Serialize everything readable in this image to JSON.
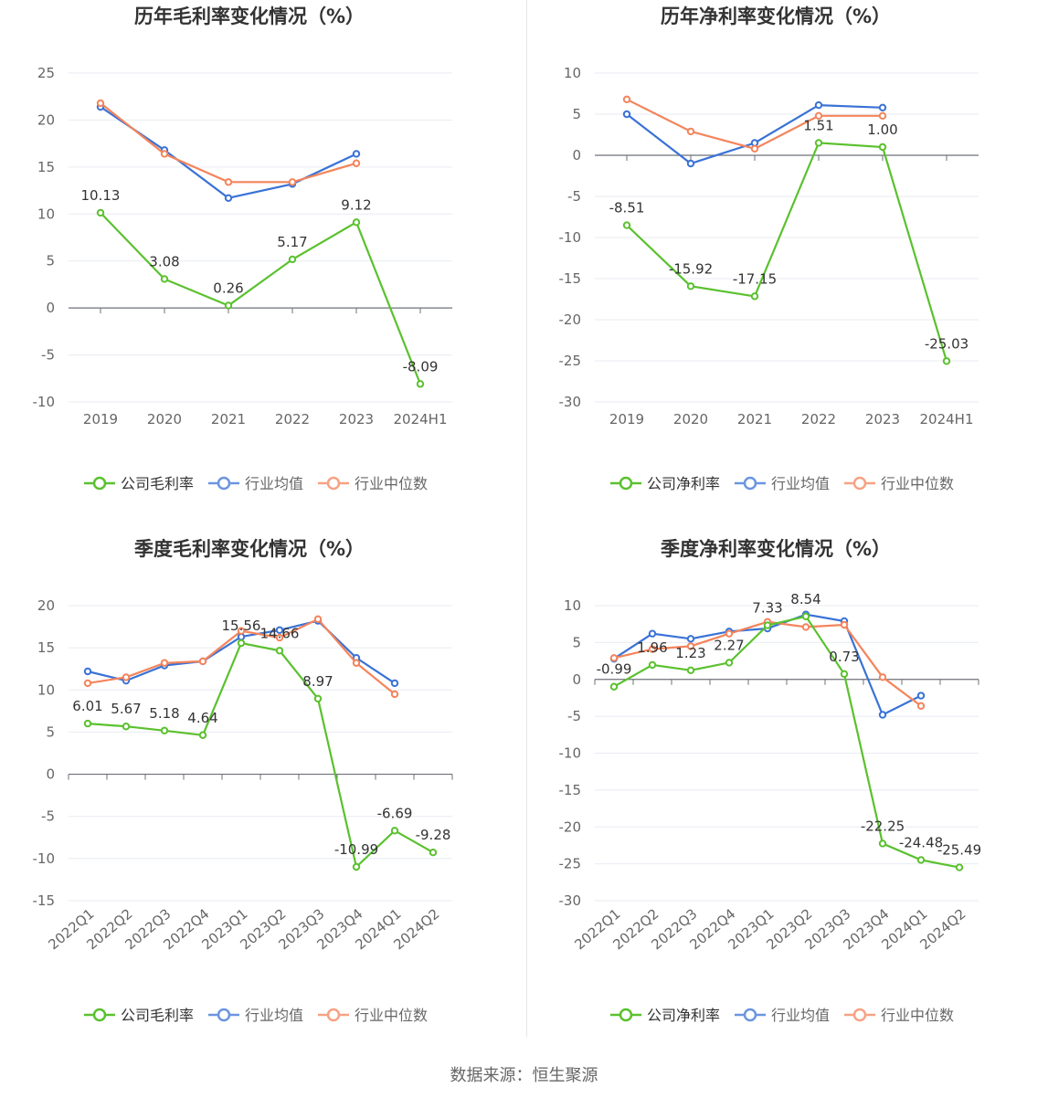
{
  "source": "数据来源：恒生聚源",
  "colors": {
    "company": "#5ac12e",
    "avg": "#3a72d6",
    "median": "#f4845b",
    "axis": "#666666",
    "grid": "#e8ebf2"
  },
  "chart_data": [
    {
      "type": "line",
      "title": "历年毛利率变化情况（%）",
      "categories": [
        "2019",
        "2020",
        "2021",
        "2022",
        "2023",
        "2024H1"
      ],
      "ylim": [
        -10,
        25
      ],
      "yticks": [
        25,
        20,
        15,
        10,
        5,
        0,
        -5,
        -10
      ],
      "rotate_labels": false,
      "series": [
        {
          "name": "公司毛利率",
          "key": "company",
          "labeled": true,
          "values": [
            10.13,
            3.08,
            0.26,
            5.17,
            9.12,
            -8.09
          ],
          "labels": [
            "10.13",
            "3.08",
            "0.26",
            "5.17",
            "9.12",
            "-8.09"
          ]
        },
        {
          "name": "行业均值",
          "key": "avg",
          "values": [
            21.4,
            16.8,
            11.7,
            13.2,
            16.4,
            null
          ]
        },
        {
          "name": "行业中位数",
          "key": "median",
          "values": [
            21.8,
            16.4,
            13.4,
            13.4,
            15.4,
            null
          ]
        }
      ]
    },
    {
      "type": "line",
      "title": "历年净利率变化情况（%）",
      "categories": [
        "2019",
        "2020",
        "2021",
        "2022",
        "2023",
        "2024H1"
      ],
      "ylim": [
        -30,
        10
      ],
      "yticks": [
        10,
        5,
        0,
        -5,
        -10,
        -15,
        -20,
        -25,
        -30
      ],
      "rotate_labels": false,
      "series": [
        {
          "name": "公司净利率",
          "key": "company",
          "labeled": true,
          "values": [
            -8.51,
            -15.92,
            -17.15,
            1.51,
            1.0,
            -25.03
          ],
          "labels": [
            "-8.51",
            "-15.92",
            "-17.15",
            "1.51",
            "1.00",
            "-25.03"
          ]
        },
        {
          "name": "行业均值",
          "key": "avg",
          "values": [
            5.0,
            -1.0,
            1.5,
            6.1,
            5.8,
            null
          ]
        },
        {
          "name": "行业中位数",
          "key": "median",
          "values": [
            6.8,
            2.9,
            0.8,
            4.8,
            4.8,
            null
          ]
        }
      ]
    },
    {
      "type": "line",
      "title": "季度毛利率变化情况（%）",
      "categories": [
        "2022Q1",
        "2022Q2",
        "2022Q3",
        "2022Q4",
        "2023Q1",
        "2023Q2",
        "2023Q3",
        "2023Q4",
        "2024Q1",
        "2024Q2"
      ],
      "ylim": [
        -15,
        20
      ],
      "yticks": [
        20,
        15,
        10,
        5,
        0,
        -5,
        -10,
        -15
      ],
      "rotate_labels": true,
      "series": [
        {
          "name": "公司毛利率",
          "key": "company",
          "labeled": true,
          "values": [
            6.01,
            5.67,
            5.18,
            4.64,
            15.56,
            14.66,
            8.97,
            -10.99,
            -6.69,
            -9.28
          ],
          "labels": [
            "6.01",
            "5.67",
            "5.18",
            "4.64",
            "15.56",
            "14.66",
            "8.97",
            "-10.99",
            "-6.69",
            "-9.28"
          ]
        },
        {
          "name": "行业均值",
          "key": "avg",
          "values": [
            12.2,
            11.1,
            12.9,
            13.4,
            16.3,
            17.1,
            18.2,
            13.8,
            10.8,
            null
          ]
        },
        {
          "name": "行业中位数",
          "key": "median",
          "values": [
            10.8,
            11.5,
            13.2,
            13.4,
            17.0,
            16.2,
            18.4,
            13.2,
            9.5,
            null
          ]
        }
      ]
    },
    {
      "type": "line",
      "title": "季度净利率变化情况（%）",
      "categories": [
        "2022Q1",
        "2022Q2",
        "2022Q3",
        "2022Q4",
        "2023Q1",
        "2023Q2",
        "2023Q3",
        "2023Q4",
        "2024Q1",
        "2024Q2"
      ],
      "ylim": [
        -30,
        10
      ],
      "yticks": [
        10,
        5,
        0,
        -5,
        -10,
        -15,
        -20,
        -25,
        -30
      ],
      "rotate_labels": true,
      "series": [
        {
          "name": "公司净利率",
          "key": "company",
          "labeled": true,
          "values": [
            -0.99,
            1.96,
            1.23,
            2.27,
            7.33,
            8.54,
            0.73,
            -22.25,
            -24.48,
            -25.49
          ],
          "labels": [
            "-0.99",
            "1.96",
            "1.23",
            "2.27",
            "7.33",
            "8.54",
            "0.73",
            "-22.25",
            "-24.48",
            "-25.49"
          ]
        },
        {
          "name": "行业均值",
          "key": "avg",
          "values": [
            2.8,
            6.2,
            5.5,
            6.5,
            6.9,
            8.8,
            7.9,
            -4.8,
            -2.2,
            null
          ]
        },
        {
          "name": "行业中位数",
          "key": "median",
          "values": [
            2.9,
            4.1,
            4.5,
            6.2,
            7.8,
            7.1,
            7.4,
            0.3,
            -3.6,
            null
          ]
        }
      ]
    }
  ]
}
